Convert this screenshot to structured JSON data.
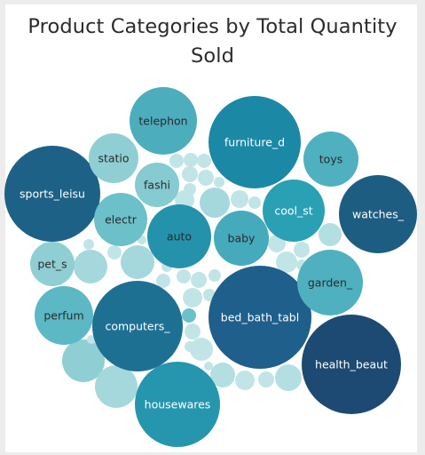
{
  "chart_data": {
    "type": "bubble",
    "title": "Product Categories by Total Quantity Sold",
    "labeled_bubbles": [
      {
        "label": "bed_bath_tabl",
        "color": "#1f5f8b"
      },
      {
        "label": "health_beaut",
        "color": "#1d4a72"
      },
      {
        "label": "furniture_d",
        "color": "#1b88a6"
      },
      {
        "label": "sports_leisu",
        "color": "#1d6187"
      },
      {
        "label": "computers_",
        "color": "#1e7093"
      },
      {
        "label": "housewares",
        "color": "#2696ae"
      },
      {
        "label": "watches_",
        "color": "#1e5d82"
      },
      {
        "label": "auto",
        "color": "#2592ac"
      },
      {
        "label": "garden_",
        "color": "#4fb0bf"
      },
      {
        "label": "cool_st",
        "color": "#2aa0b5"
      },
      {
        "label": "telephon",
        "color": "#4cadbd"
      },
      {
        "label": "baby",
        "color": "#45aabb"
      },
      {
        "label": "toys",
        "color": "#4fb0bf"
      },
      {
        "label": "perfum",
        "color": "#5cb8c4"
      },
      {
        "label": "electr",
        "color": "#6cc0c9"
      },
      {
        "label": "fashi",
        "color": "#85cbd1"
      },
      {
        "label": "statio",
        "color": "#8fcfd4"
      },
      {
        "label": "pet_s",
        "color": "#8fcfd4"
      }
    ],
    "unlabeled_bubble_count": 42
  }
}
